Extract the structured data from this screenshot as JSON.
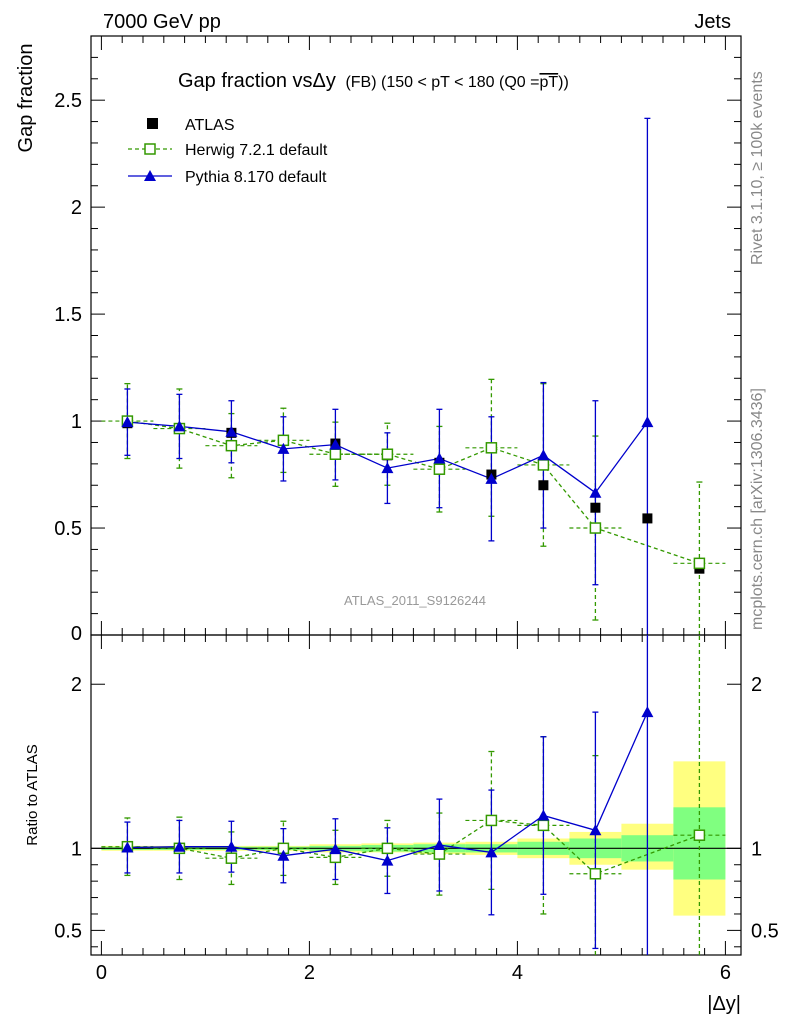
{
  "header": {
    "left": "7000 GeV pp",
    "right": "Jets",
    "side_top": "Rivet 3.1.10, ≥ 100k events",
    "side_bottom": "mcplots.cern.ch [arXiv:1306.3436]"
  },
  "colors": {
    "atlas": "#000000",
    "herwig": "#339900",
    "pythia": "#0000cc",
    "band_outer": "#ffff80",
    "band_inner": "#80ff80",
    "watermark": "#999999"
  },
  "chart_data": [
    {
      "type": "scatter",
      "panel": "main",
      "title": "Gap fraction vsΔy",
      "subtitle": "(FB) (150 < pT < 180 (Q0 =",
      "subtitle_overline": "pT",
      "subtitle_end": "))",
      "ylabel": "Gap fraction",
      "xlabel": "",
      "watermark": "ATLAS_2011_S9126244",
      "xlim": [
        -0.1,
        6.15
      ],
      "ylim": [
        0,
        2.8
      ],
      "yticks": [
        0.5,
        1,
        1.5,
        2,
        2.5
      ],
      "ytick_labels": [
        "0.5",
        "1",
        "1.5",
        "2",
        "2.5"
      ],
      "ytick_zero_label": "0",
      "legend_position": "top-left",
      "x": [
        0.25,
        0.75,
        1.25,
        1.75,
        2.25,
        2.75,
        3.25,
        3.75,
        4.25,
        4.75,
        5.25,
        5.75
      ],
      "series": [
        {
          "name": "ATLAS",
          "marker": "square-filled",
          "line": "none",
          "values": [
            0.99,
            0.965,
            0.945,
            0.91,
            0.895,
            0.84,
            0.805,
            0.75,
            0.7,
            0.595,
            0.545,
            0.31
          ],
          "err": [
            0.01,
            0.01,
            0.01,
            0.01,
            0.01,
            0.01,
            0.01,
            0.01,
            0.01,
            0.01,
            0.01,
            0.01
          ]
        },
        {
          "name": "Herwig 7.2.1 default",
          "marker": "square-open",
          "line": "dashed",
          "values": [
            1.0,
            0.965,
            0.885,
            0.91,
            0.845,
            0.845,
            0.775,
            0.875,
            0.795,
            0.5,
            null,
            0.335
          ],
          "err": [
            0.175,
            0.185,
            0.15,
            0.15,
            0.15,
            0.145,
            0.2,
            0.32,
            0.38,
            0.43,
            null,
            0.38
          ]
        },
        {
          "name": "Pythia 8.170 default",
          "marker": "triangle-filled",
          "line": "solid",
          "values": [
            0.995,
            0.975,
            0.95,
            0.87,
            0.89,
            0.78,
            0.825,
            0.73,
            0.84,
            0.665,
            0.995,
            null
          ],
          "err": [
            0.155,
            0.15,
            0.145,
            0.15,
            0.165,
            0.165,
            0.23,
            0.29,
            0.34,
            0.43,
            1.42,
            null
          ]
        }
      ]
    },
    {
      "type": "scatter",
      "panel": "ratio",
      "ylabel": "Ratio to ATLAS",
      "xlabel": "|Δy|",
      "xlim": [
        -0.1,
        6.15
      ],
      "ylim": [
        0.35,
        2.3
      ],
      "yticks": [
        0.5,
        1,
        2
      ],
      "ytick_labels": [
        "0.5",
        "1",
        "2"
      ],
      "xticks": [
        0,
        2,
        4,
        6
      ],
      "xtick_labels": [
        "0",
        "2",
        "4",
        "6"
      ],
      "reference_line": 1,
      "x": [
        0.25,
        0.75,
        1.25,
        1.75,
        2.25,
        2.75,
        3.25,
        3.75,
        4.25,
        4.75,
        5.25,
        5.75
      ],
      "bands": {
        "inner": {
          "lo": [
            0.99,
            0.99,
            0.99,
            0.99,
            0.985,
            0.98,
            0.975,
            0.975,
            0.96,
            0.94,
            0.92,
            0.81
          ],
          "hi": [
            1.01,
            1.01,
            1.01,
            1.01,
            1.015,
            1.02,
            1.025,
            1.025,
            1.04,
            1.06,
            1.08,
            1.25
          ]
        },
        "outer": {
          "lo": [
            0.985,
            0.985,
            0.985,
            0.985,
            0.975,
            0.975,
            0.965,
            0.96,
            0.94,
            0.9,
            0.87,
            0.59
          ],
          "hi": [
            1.015,
            1.015,
            1.015,
            1.015,
            1.025,
            1.03,
            1.035,
            1.04,
            1.06,
            1.1,
            1.15,
            1.53
          ]
        }
      },
      "series": [
        {
          "name": "Herwig 7.2.1 default",
          "values": [
            1.01,
            1.0,
            0.94,
            1.0,
            0.945,
            1.0,
            0.965,
            1.17,
            1.14,
            0.845,
            null,
            1.08
          ],
          "err": [
            0.175,
            0.19,
            0.16,
            0.165,
            0.165,
            0.17,
            0.25,
            0.42,
            0.54,
            0.72,
            null,
            1.22
          ]
        },
        {
          "name": "Pythia 8.170 default",
          "values": [
            1.005,
            1.01,
            1.01,
            0.955,
            0.995,
            0.925,
            1.02,
            0.975,
            1.2,
            1.11,
            1.83,
            null
          ],
          "err": [
            0.155,
            0.16,
            0.155,
            0.165,
            0.185,
            0.2,
            0.28,
            0.38,
            0.48,
            0.72,
            2.6,
            null
          ]
        }
      ]
    }
  ]
}
